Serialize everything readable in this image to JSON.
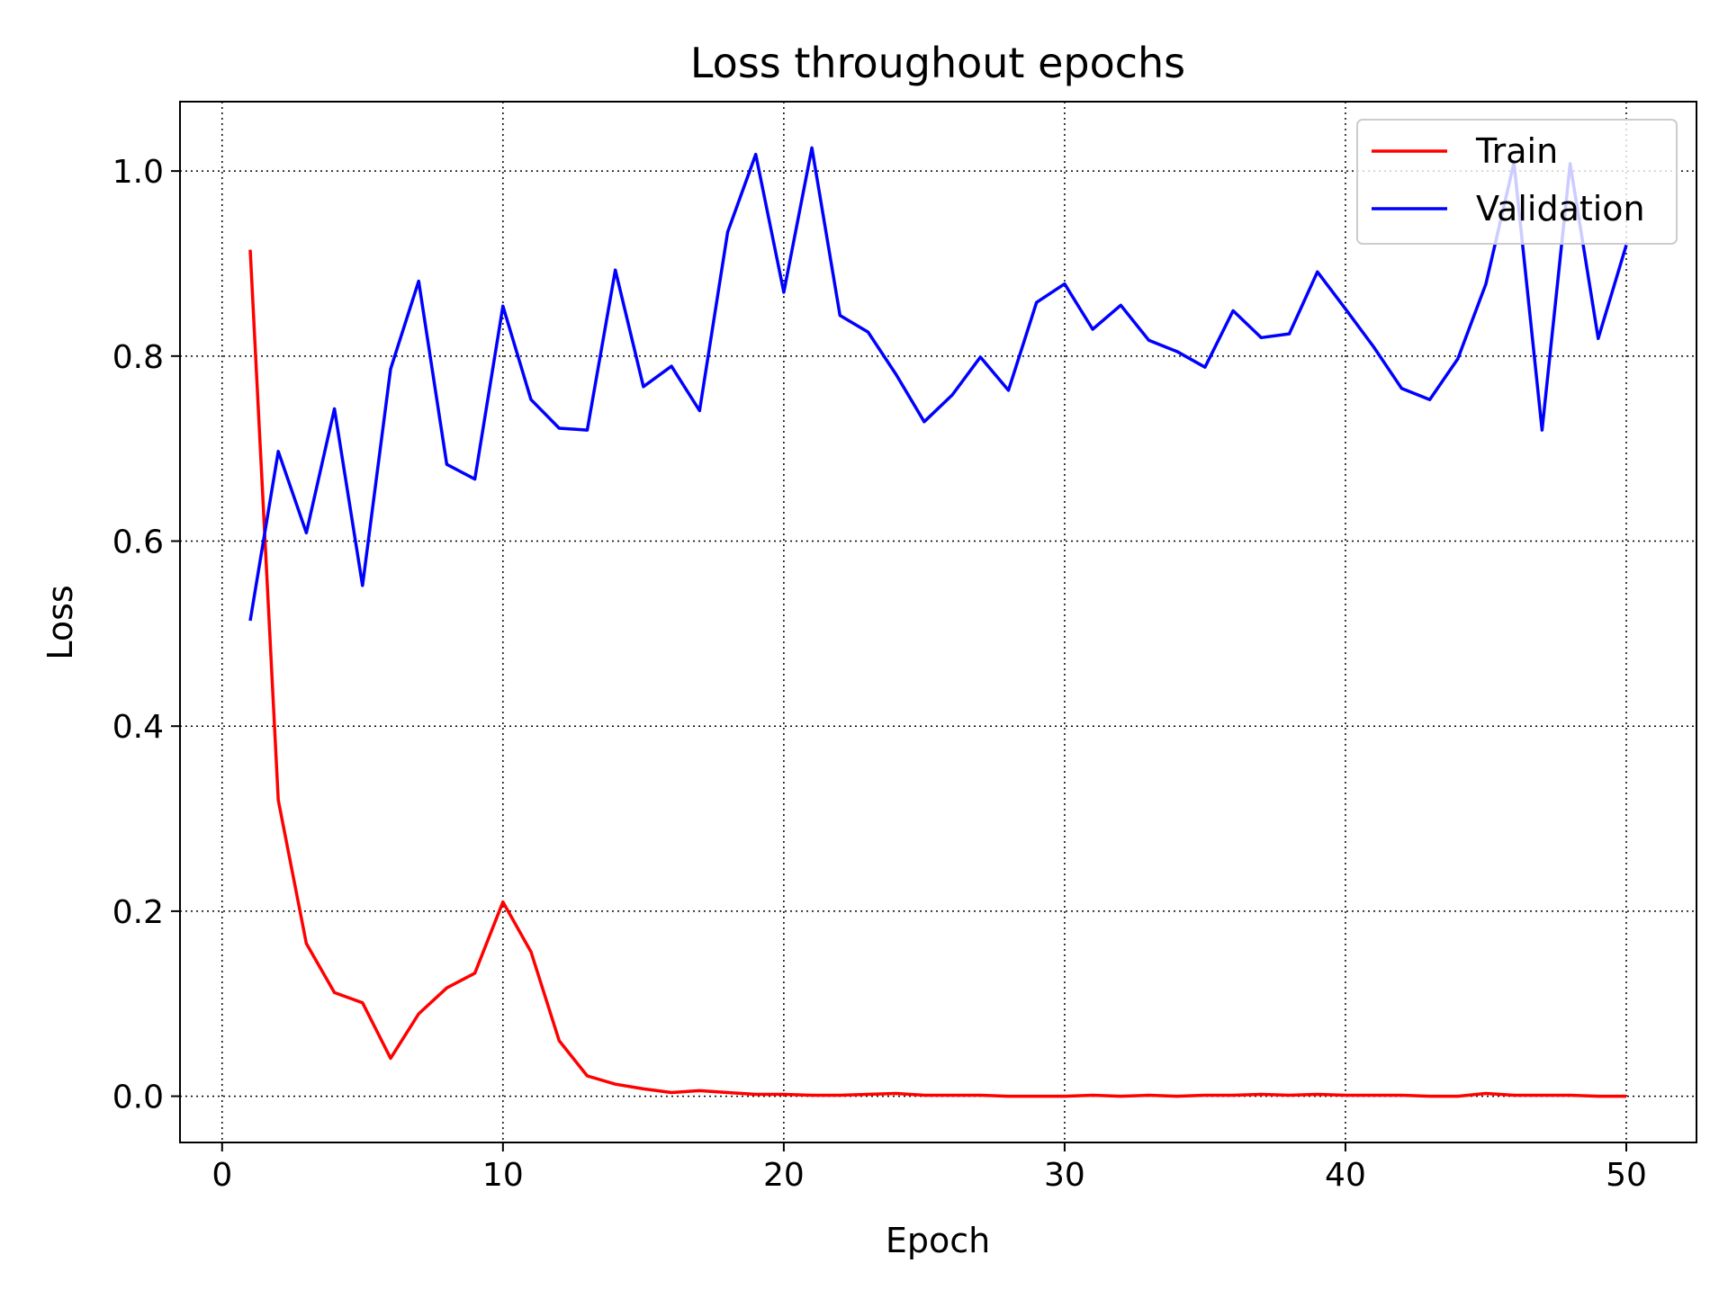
{
  "chart_data": {
    "type": "line",
    "title": "Loss throughout epochs",
    "xlabel": "Epoch",
    "ylabel": "Loss",
    "xlim": [
      -1.5,
      52.5
    ],
    "ylim": [
      -0.05,
      1.075
    ],
    "xticks": [
      0,
      10,
      20,
      30,
      40,
      50
    ],
    "xtick_labels": [
      "0",
      "10",
      "20",
      "30",
      "40",
      "50"
    ],
    "yticks": [
      0.0,
      0.2,
      0.4,
      0.6,
      0.8,
      1.0
    ],
    "ytick_labels": [
      "0.0",
      "0.2",
      "0.4",
      "0.6",
      "0.8",
      "1.0"
    ],
    "grid": true,
    "grid_style": "dotted",
    "legend_position": "top-right",
    "x": [
      1,
      2,
      3,
      4,
      5,
      6,
      7,
      8,
      9,
      10,
      11,
      12,
      13,
      14,
      15,
      16,
      17,
      18,
      19,
      20,
      21,
      22,
      23,
      24,
      25,
      26,
      27,
      28,
      29,
      30,
      31,
      32,
      33,
      34,
      35,
      36,
      37,
      38,
      39,
      40,
      41,
      42,
      43,
      44,
      45,
      46,
      47,
      48,
      49,
      50
    ],
    "series": [
      {
        "name": "Train",
        "color": "#ff0000",
        "values": [
          0.915,
          0.32,
          0.165,
          0.112,
          0.101,
          0.041,
          0.089,
          0.117,
          0.133,
          0.21,
          0.156,
          0.06,
          0.022,
          0.013,
          0.008,
          0.004,
          0.006,
          0.004,
          0.002,
          0.002,
          0.001,
          0.001,
          0.002,
          0.003,
          0.001,
          0.001,
          0.001,
          0.0,
          0.0,
          0.0,
          0.001,
          0.0,
          0.001,
          0.0,
          0.001,
          0.001,
          0.002,
          0.001,
          0.002,
          0.001,
          0.001,
          0.001,
          0.0,
          0.0,
          0.003,
          0.001,
          0.001,
          0.001,
          0.0,
          0.0
        ]
      },
      {
        "name": "Validation",
        "color": "#0000ff",
        "values": [
          0.514,
          0.697,
          0.609,
          0.743,
          0.552,
          0.786,
          0.881,
          0.683,
          0.667,
          0.854,
          0.753,
          0.722,
          0.72,
          0.893,
          0.767,
          0.789,
          0.741,
          0.934,
          1.018,
          0.869,
          1.025,
          0.844,
          0.826,
          0.78,
          0.729,
          0.758,
          0.799,
          0.763,
          0.858,
          0.878,
          0.829,
          0.855,
          0.817,
          0.805,
          0.788,
          0.849,
          0.82,
          0.824,
          0.891,
          0.851,
          0.81,
          0.765,
          0.753,
          0.797,
          0.878,
          1.009,
          0.72,
          1.008,
          0.819,
          0.92
        ]
      }
    ]
  }
}
